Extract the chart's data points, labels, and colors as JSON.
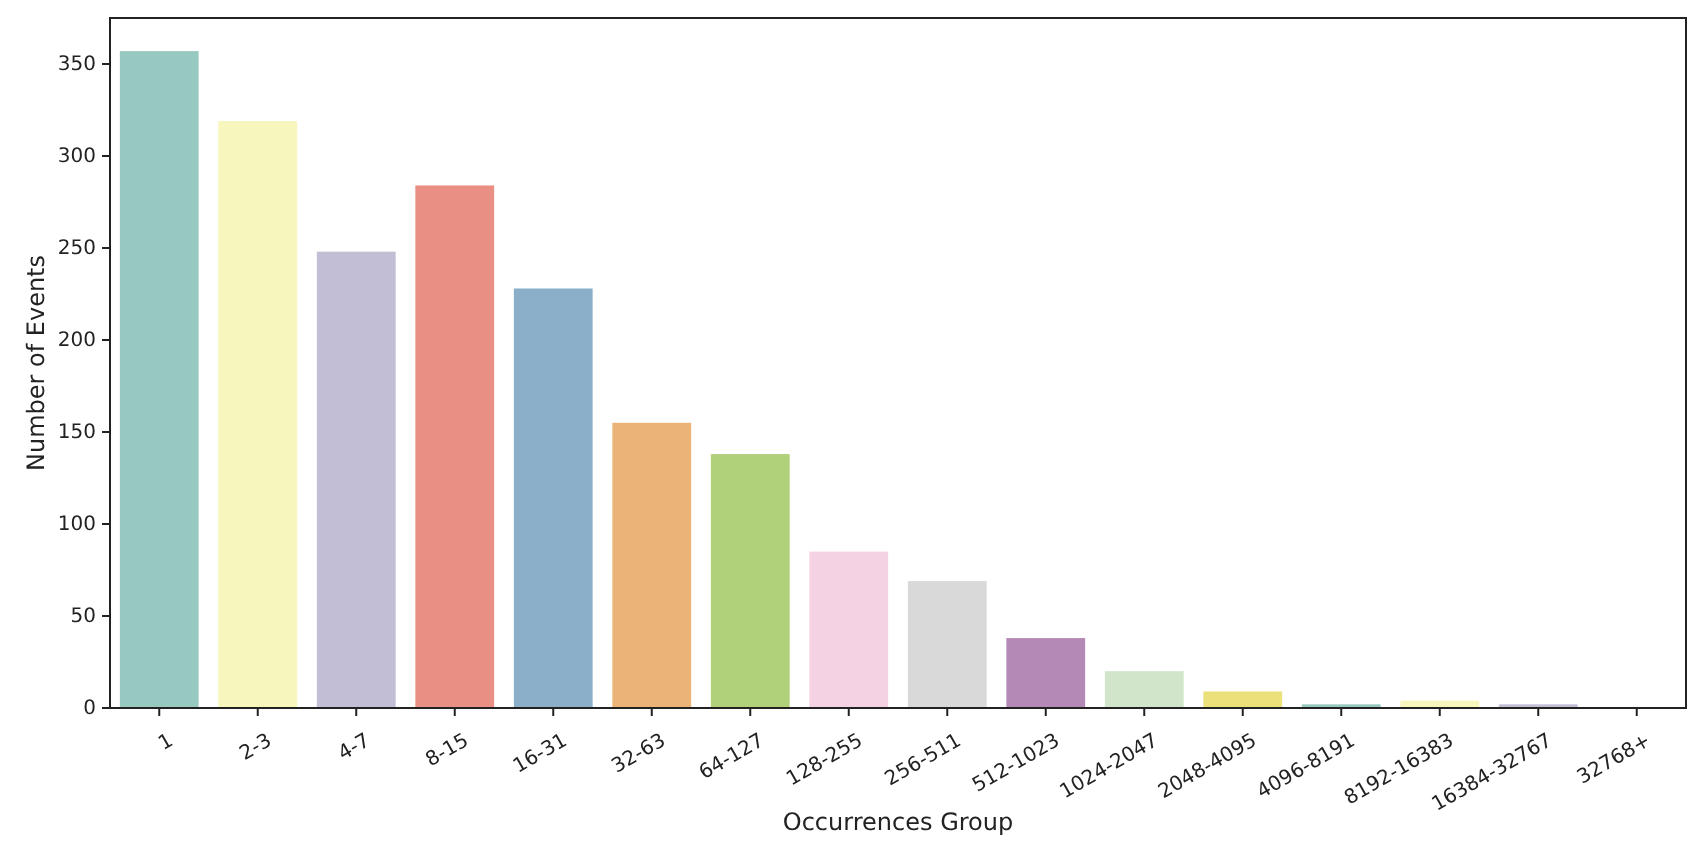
{
  "chart_data": {
    "type": "bar",
    "xlabel": "Occurrences Group",
    "ylabel": "Number of Events",
    "categories": [
      "1",
      "2-3",
      "4-7",
      "8-15",
      "16-31",
      "32-63",
      "64-127",
      "128-255",
      "256-511",
      "512-1023",
      "1024-2047",
      "2048-4095",
      "4096-8191",
      "8192-16383",
      "16384-32767",
      "32768+"
    ],
    "values": [
      357,
      319,
      248,
      284,
      228,
      155,
      138,
      85,
      69,
      38,
      20,
      9,
      2,
      4,
      2,
      0
    ],
    "colors": [
      "#98c9c0",
      "#f7f6bd",
      "#c1bed6",
      "#ea8f83",
      "#8bafc9",
      "#ebb377",
      "#b0d07a",
      "#f4d2e3",
      "#d9d9d9",
      "#b589b6",
      "#d0e5c9",
      "#ece07b",
      "#98c9c0",
      "#f7f6bd",
      "#c1bed6",
      "#ea8f83"
    ],
    "ylim": [
      0,
      375
    ],
    "yticks": [
      0,
      50,
      100,
      150,
      200,
      250,
      300,
      350
    ],
    "grid": false
  }
}
